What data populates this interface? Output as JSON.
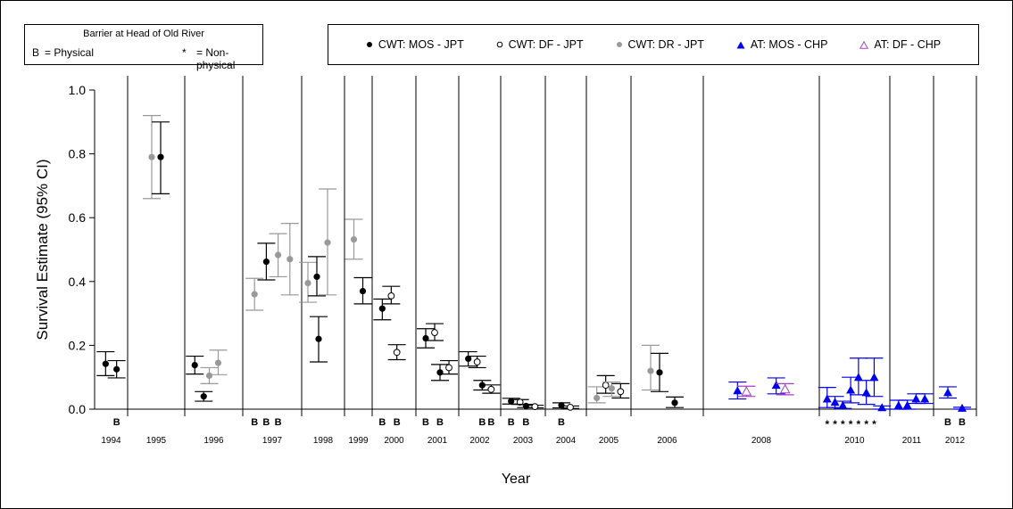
{
  "legend_barrier": {
    "title": "Barrier at Head of Old River",
    "physical_code": "B",
    "physical_label": "= Physical",
    "nonphysical_code": "*",
    "nonphysical_label": "= Non-physical"
  },
  "chart_data": {
    "type": "scatter",
    "title": "",
    "xlabel": "Year",
    "ylabel": "Survival Estimate (95% CI)",
    "ylim": [
      0,
      1.0
    ],
    "yticks": [
      "0.0",
      "0.2",
      "0.4",
      "0.6",
      "0.8",
      "1.0"
    ],
    "grid": false,
    "legend_position": "top",
    "colors": {
      "black": "#000000",
      "gray": "#999999",
      "blue": "#0000ee",
      "purple": "#a040c0"
    },
    "series": [
      {
        "name": "CWT: MOS - JPT",
        "marker": "filled-circle",
        "color": "#000000"
      },
      {
        "name": "CWT: DF - JPT",
        "marker": "open-circle",
        "color": "#000000"
      },
      {
        "name": "CWT: DR - JPT",
        "marker": "filled-circle",
        "color": "#999999"
      },
      {
        "name": "AT: MOS - CHP",
        "marker": "filled-triangle",
        "color": "#0000ee"
      },
      {
        "name": "AT: DF - CHP",
        "marker": "open-triangle",
        "color": "#a040c0"
      }
    ],
    "years": [
      {
        "label": "1994",
        "slots": 2,
        "releases": [
          {
            "series": "CWT: MOS - JPT",
            "y": 0.142,
            "lo": 0.105,
            "hi": 0.18,
            "barrier": ""
          },
          {
            "series": "CWT: MOS - JPT",
            "y": 0.125,
            "lo": 0.098,
            "hi": 0.152,
            "barrier": "B"
          }
        ]
      },
      {
        "label": "1995",
        "slots": 1,
        "releases": [
          {
            "series": "CWT: DR - JPT",
            "y": 0.79,
            "lo": 0.66,
            "hi": 0.92,
            "barrier": ""
          },
          {
            "series": "CWT: MOS - JPT",
            "y": 0.79,
            "lo": 0.675,
            "hi": 0.9,
            "barrier": ""
          }
        ]
      },
      {
        "label": "1996",
        "slots": 3,
        "releases": [
          {
            "series": "CWT: MOS - JPT",
            "y": 0.138,
            "lo": 0.11,
            "hi": 0.166,
            "barrier": ""
          },
          {
            "series": "CWT: MOS - JPT",
            "y": 0.04,
            "lo": 0.025,
            "hi": 0.055,
            "barrier": ""
          },
          {
            "series": "CWT: DR - JPT",
            "y": 0.105,
            "lo": 0.08,
            "hi": 0.13,
            "barrier": ""
          },
          {
            "series": "CWT: DR - JPT",
            "y": 0.145,
            "lo": 0.108,
            "hi": 0.185,
            "barrier": ""
          }
        ]
      },
      {
        "label": "1997",
        "slots": 4,
        "releases": [
          {
            "series": "CWT: DR - JPT",
            "y": 0.36,
            "lo": 0.31,
            "hi": 0.41,
            "barrier": "B"
          },
          {
            "series": "CWT: MOS - JPT",
            "y": 0.462,
            "lo": 0.405,
            "hi": 0.52,
            "barrier": "B"
          },
          {
            "series": "CWT: DR - JPT",
            "y": 0.483,
            "lo": 0.415,
            "hi": 0.55,
            "barrier": "B"
          },
          {
            "series": "CWT: DR - JPT",
            "y": 0.47,
            "lo": 0.358,
            "hi": 0.582,
            "barrier": ""
          }
        ]
      },
      {
        "label": "1998",
        "slots": 3,
        "releases": [
          {
            "series": "CWT: DR - JPT",
            "y": 0.395,
            "lo": 0.335,
            "hi": 0.46,
            "barrier": ""
          },
          {
            "series": "CWT: MOS - JPT",
            "y": 0.415,
            "lo": 0.355,
            "hi": 0.478,
            "barrier": ""
          },
          {
            "series": "CWT: MOS - JPT",
            "y": 0.22,
            "lo": 0.148,
            "hi": 0.29,
            "barrier": ""
          },
          {
            "series": "CWT: DR - JPT",
            "y": 0.522,
            "lo": 0.358,
            "hi": 0.69,
            "barrier": ""
          }
        ]
      },
      {
        "label": "1999",
        "slots": 1,
        "releases": [
          {
            "series": "CWT: DR - JPT",
            "y": 0.532,
            "lo": 0.47,
            "hi": 0.595,
            "barrier": ""
          },
          {
            "series": "CWT: MOS - JPT",
            "y": 0.37,
            "lo": 0.33,
            "hi": 0.412,
            "barrier": ""
          }
        ]
      },
      {
        "label": "2000",
        "slots": 2,
        "releases": [
          {
            "series": "CWT: MOS - JPT",
            "y": 0.315,
            "lo": 0.28,
            "hi": 0.345,
            "barrier": "B"
          },
          {
            "series": "CWT: DF - JPT",
            "y": 0.355,
            "lo": 0.33,
            "hi": 0.385,
            "barrier": ""
          },
          {
            "series": "CWT: DF - JPT",
            "y": 0.178,
            "lo": 0.155,
            "hi": 0.202,
            "barrier": "B"
          }
        ]
      },
      {
        "label": "2001",
        "slots": 2,
        "releases": [
          {
            "series": "CWT: MOS - JPT",
            "y": 0.222,
            "lo": 0.192,
            "hi": 0.252,
            "barrier": "B"
          },
          {
            "series": "CWT: DF - JPT",
            "y": 0.24,
            "lo": 0.215,
            "hi": 0.268,
            "barrier": ""
          },
          {
            "series": "CWT: MOS - JPT",
            "y": 0.115,
            "lo": 0.09,
            "hi": 0.14,
            "barrier": "B"
          },
          {
            "series": "CWT: DF - JPT",
            "y": 0.13,
            "lo": 0.11,
            "hi": 0.152,
            "barrier": ""
          }
        ]
      },
      {
        "label": "2002",
        "slots": 2,
        "releases": [
          {
            "series": "CWT: MOS - JPT",
            "y": 0.158,
            "lo": 0.135,
            "hi": 0.18,
            "barrier": ""
          },
          {
            "series": "CWT: DF - JPT",
            "y": 0.148,
            "lo": 0.13,
            "hi": 0.166,
            "barrier": ""
          },
          {
            "series": "CWT: MOS - JPT",
            "y": 0.075,
            "lo": 0.06,
            "hi": 0.09,
            "barrier": "B"
          },
          {
            "series": "CWT: DF - JPT",
            "y": 0.062,
            "lo": 0.05,
            "hi": 0.076,
            "barrier": "B"
          }
        ]
      },
      {
        "label": "2003",
        "slots": 2,
        "releases": [
          {
            "series": "CWT: MOS - JPT",
            "y": 0.025,
            "lo": 0.016,
            "hi": 0.034,
            "barrier": "B"
          },
          {
            "series": "CWT: DF - JPT",
            "y": 0.022,
            "lo": 0.015,
            "hi": 0.03,
            "barrier": ""
          },
          {
            "series": "CWT: MOS - JPT",
            "y": 0.01,
            "lo": 0.005,
            "hi": 0.015,
            "barrier": "B"
          },
          {
            "series": "CWT: DF - JPT",
            "y": 0.008,
            "lo": 0.004,
            "hi": 0.012,
            "barrier": ""
          }
        ]
      },
      {
        "label": "2004",
        "slots": 1,
        "releases": [
          {
            "series": "CWT: MOS - JPT",
            "y": 0.012,
            "lo": 0.004,
            "hi": 0.02,
            "barrier": "B"
          },
          {
            "series": "CWT: DF - JPT",
            "y": 0.006,
            "lo": 0.002,
            "hi": 0.01,
            "barrier": ""
          }
        ]
      },
      {
        "label": "2005",
        "slots": 2,
        "releases": [
          {
            "series": "CWT: DR - JPT",
            "y": 0.035,
            "lo": 0.02,
            "hi": 0.07,
            "barrier": ""
          },
          {
            "series": "CWT: DF - JPT",
            "y": 0.075,
            "lo": 0.05,
            "hi": 0.105,
            "barrier": ""
          },
          {
            "series": "CWT: DR - JPT",
            "y": 0.065,
            "lo": 0.04,
            "hi": 0.085,
            "barrier": ""
          },
          {
            "series": "CWT: DF - JPT",
            "y": 0.055,
            "lo": 0.035,
            "hi": 0.08,
            "barrier": ""
          }
        ]
      },
      {
        "label": "2006",
        "slots": 2,
        "releases": [
          {
            "series": "CWT: DR - JPT",
            "y": 0.12,
            "lo": 0.06,
            "hi": 0.2,
            "barrier": ""
          },
          {
            "series": "CWT: MOS - JPT",
            "y": 0.115,
            "lo": 0.055,
            "hi": 0.175,
            "barrier": ""
          },
          {
            "series": "CWT: MOS - JPT",
            "y": 0.02,
            "lo": 0.005,
            "hi": 0.038,
            "barrier": ""
          }
        ]
      },
      {
        "label": "2008",
        "slots": 2,
        "releases": [
          {
            "series": "AT: MOS - CHP",
            "y": 0.058,
            "lo": 0.032,
            "hi": 0.085,
            "barrier": ""
          },
          {
            "series": "AT: DF - CHP",
            "y": 0.055,
            "lo": 0.04,
            "hi": 0.072,
            "barrier": ""
          },
          {
            "series": "AT: MOS - CHP",
            "y": 0.075,
            "lo": 0.048,
            "hi": 0.098,
            "barrier": ""
          },
          {
            "series": "AT: DF - CHP",
            "y": 0.062,
            "lo": 0.045,
            "hi": 0.08,
            "barrier": ""
          }
        ]
      },
      {
        "label": "2010",
        "slots": 8,
        "releases": [
          {
            "series": "AT: MOS - CHP",
            "y": 0.032,
            "lo": 0.005,
            "hi": 0.068,
            "barrier": "*"
          },
          {
            "series": "AT: MOS - CHP",
            "y": 0.022,
            "lo": 0.005,
            "hi": 0.04,
            "barrier": "*"
          },
          {
            "series": "AT: MOS - CHP",
            "y": 0.012,
            "lo": 0.002,
            "hi": 0.025,
            "barrier": "*"
          },
          {
            "series": "AT: MOS - CHP",
            "y": 0.06,
            "lo": 0.02,
            "hi": 0.1,
            "barrier": "*"
          },
          {
            "series": "AT: MOS - CHP",
            "y": 0.1,
            "lo": 0.045,
            "hi": 0.16,
            "barrier": "*"
          },
          {
            "series": "AT: MOS - CHP",
            "y": 0.052,
            "lo": 0.015,
            "hi": 0.09,
            "barrier": "*"
          },
          {
            "series": "AT: MOS - CHP",
            "y": 0.1,
            "lo": 0.04,
            "hi": 0.16,
            "barrier": "*"
          },
          {
            "series": "AT: MOS - CHP",
            "y": 0.005,
            "lo": 0.0,
            "hi": 0.01,
            "barrier": ""
          }
        ]
      },
      {
        "label": "2011",
        "slots": 4,
        "releases": [
          {
            "series": "AT: MOS - CHP",
            "y": 0.012,
            "lo": 0.0,
            "hi": 0.028,
            "barrier": ""
          },
          {
            "series": "AT: MOS - CHP",
            "y": 0.012,
            "lo": 0.0,
            "hi": 0.028,
            "barrier": ""
          },
          {
            "series": "AT: MOS - CHP",
            "y": 0.032,
            "lo": 0.018,
            "hi": 0.048,
            "barrier": ""
          },
          {
            "series": "AT: MOS - CHP",
            "y": 0.032,
            "lo": 0.018,
            "hi": 0.048,
            "barrier": ""
          }
        ]
      },
      {
        "label": "2012",
        "slots": 2,
        "releases": [
          {
            "series": "AT: MOS - CHP",
            "y": 0.052,
            "lo": 0.035,
            "hi": 0.07,
            "barrier": "B"
          },
          {
            "series": "AT: MOS - CHP",
            "y": 0.003,
            "lo": 0.0,
            "hi": 0.006,
            "barrier": "B"
          }
        ]
      }
    ]
  }
}
